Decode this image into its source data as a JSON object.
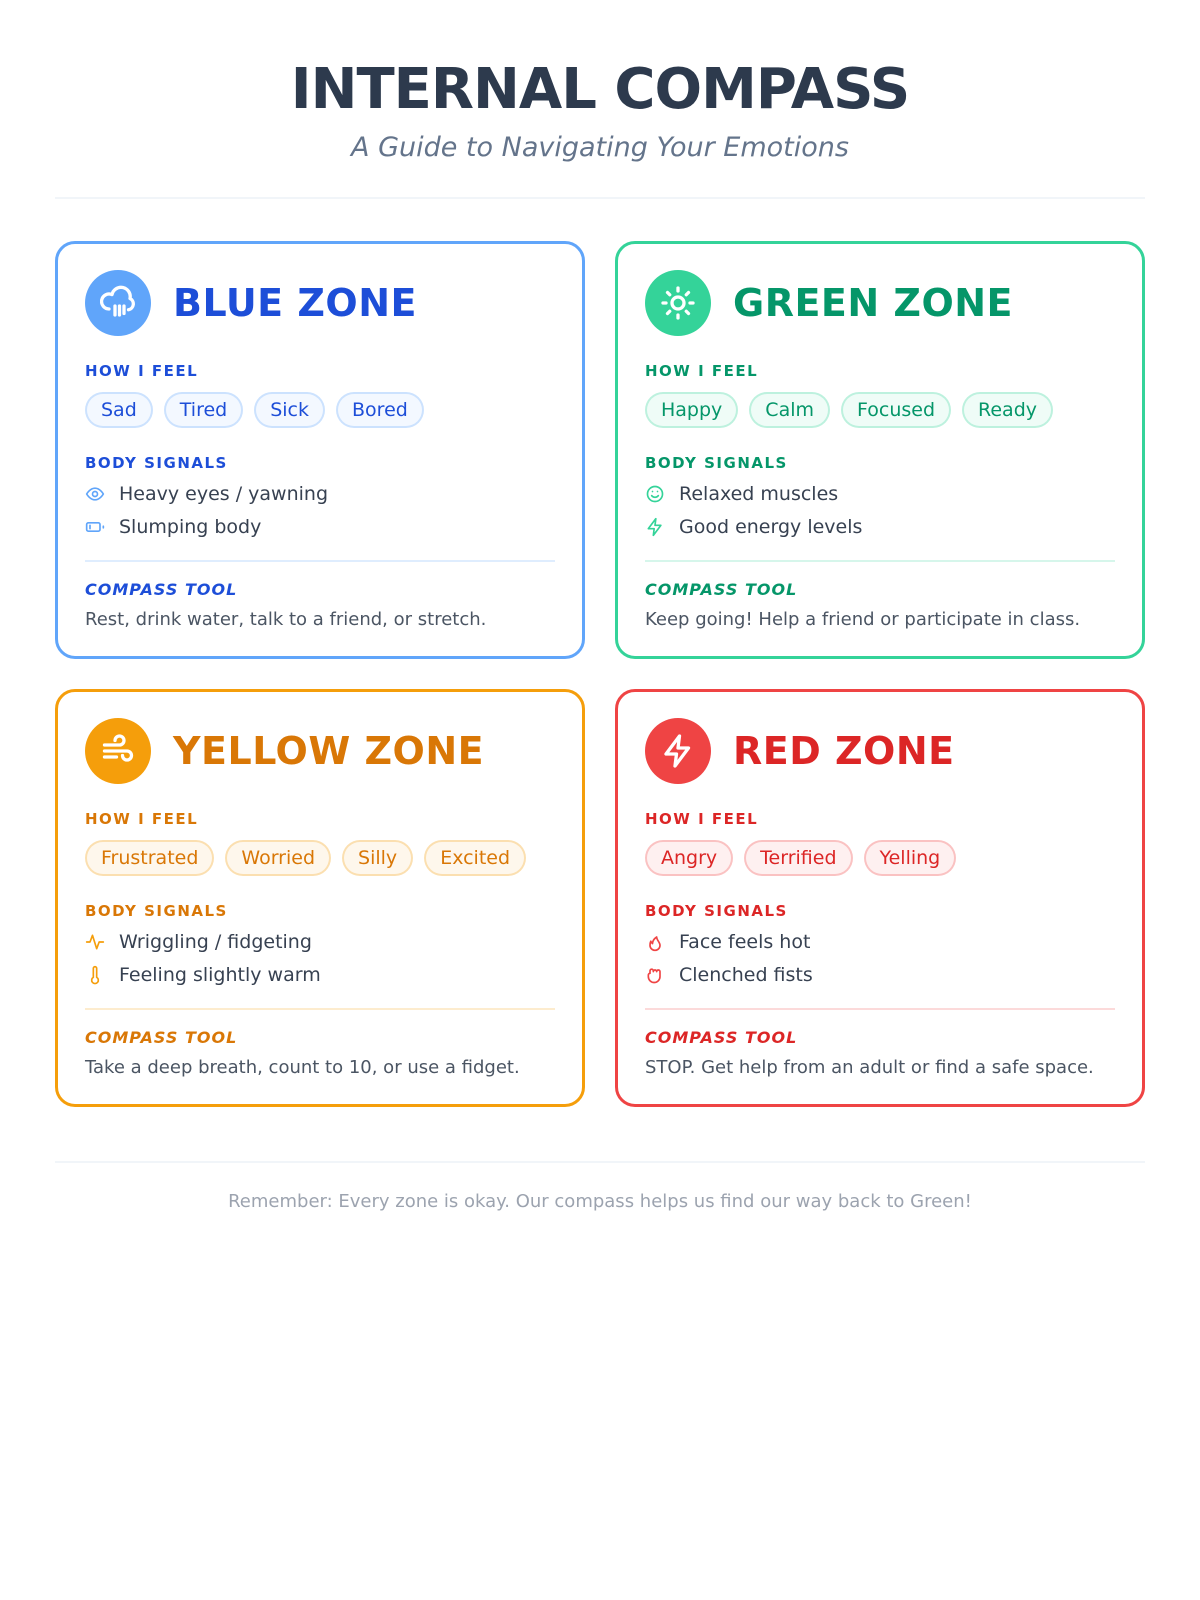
{
  "header": {
    "title": "INTERNAL COMPASS",
    "subtitle": "A Guide to Navigating Your Emotions"
  },
  "labels": {
    "feel": "HOW I FEEL",
    "body": "BODY SIGNALS",
    "tool": "COMPASS TOOL"
  },
  "zones": [
    {
      "name": "BLUE ZONE",
      "icon": "cloud-rain-icon",
      "color": "#60a5fa",
      "text": "#1d4ed8",
      "feelings": [
        "Sad",
        "Tired",
        "Sick",
        "Bored"
      ],
      "signals": [
        {
          "icon": "eye-icon",
          "text": "Heavy eyes / yawning"
        },
        {
          "icon": "battery-low-icon",
          "text": "Slumping body"
        }
      ],
      "tool": "Rest, drink water, talk to a friend, or stretch."
    },
    {
      "name": "GREEN ZONE",
      "icon": "sun-icon",
      "color": "#34d399",
      "text": "#059669",
      "feelings": [
        "Happy",
        "Calm",
        "Focused",
        "Ready"
      ],
      "signals": [
        {
          "icon": "smile-icon",
          "text": "Relaxed muscles"
        },
        {
          "icon": "zap-icon",
          "text": "Good energy levels"
        }
      ],
      "tool": "Keep going! Help a friend or participate in class."
    },
    {
      "name": "YELLOW ZONE",
      "icon": "wind-icon",
      "color": "#f59e0b",
      "text": "#d97706",
      "feelings": [
        "Frustrated",
        "Worried",
        "Silly",
        "Excited"
      ],
      "signals": [
        {
          "icon": "activity-icon",
          "text": "Wriggling / fidgeting"
        },
        {
          "icon": "thermometer-icon",
          "text": "Feeling slightly warm"
        }
      ],
      "tool": "Take a deep breath, count to 10, or use a fidget."
    },
    {
      "name": "RED ZONE",
      "icon": "zap-icon",
      "color": "#ef4444",
      "text": "#dc2626",
      "feelings": [
        "Angry",
        "Terrified",
        "Yelling"
      ],
      "signals": [
        {
          "icon": "flame-icon",
          "text": "Face feels hot"
        },
        {
          "icon": "fist-icon",
          "text": "Clenched fists"
        }
      ],
      "tool": "STOP. Get help from an adult or find a safe space."
    }
  ],
  "footer": "Remember: Every zone is okay. Our compass helps us find our way back to Green!"
}
